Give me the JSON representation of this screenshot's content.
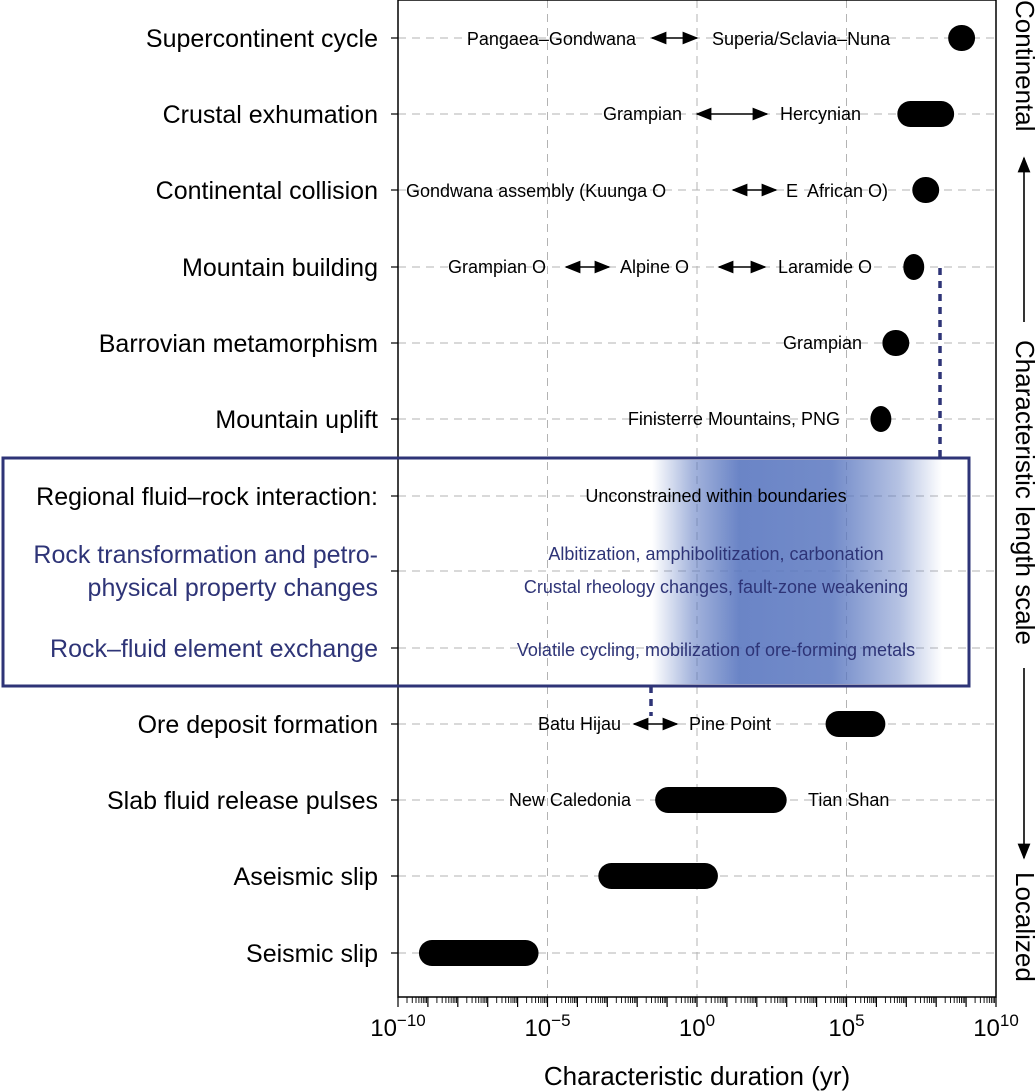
{
  "colors": {
    "ink": "#000000",
    "grid": "#b3b3b3",
    "accent": "#2e3477",
    "blue_fill": "#5a77c0"
  },
  "chart_data": {
    "type": "range-bar",
    "xscale": "log10",
    "xlim": [
      1e-10,
      10000000000.0
    ],
    "xlabel": "Characteristic duration (yr)",
    "ylabel": "Characteristic length scale",
    "ylabel_top": "Continental",
    "ylabel_bottom": "Localized",
    "grid": true,
    "x_ticks": [
      {
        "base": "10",
        "exp": "−10",
        "value": -10
      },
      {
        "base": "10",
        "exp": "−5",
        "value": -5
      },
      {
        "base": "10",
        "exp": "0",
        "value": 0
      },
      {
        "base": "10",
        "exp": "5",
        "value": 5
      },
      {
        "base": "10",
        "exp": "10",
        "value": 10
      }
    ],
    "rows": [
      {
        "label": "Supercontinent cycle",
        "range_log10": [
          8.4,
          9.3
        ]
      },
      {
        "label": "Crustal exhumation",
        "range_log10": [
          6.7,
          8.6
        ]
      },
      {
        "label": "Continental collision",
        "range_log10": [
          7.2,
          8.1
        ]
      },
      {
        "label": "Mountain building",
        "range_log10": [
          6.9,
          7.6
        ]
      },
      {
        "label": "Barrovian metamorphism",
        "range_log10": [
          6.2,
          7.1
        ]
      },
      {
        "label": "Mountain uplift",
        "range_log10": [
          5.8,
          6.5
        ]
      },
      {
        "label": "Regional fluid–rock interaction:",
        "range_log10": null
      },
      {
        "label": "Rock transformation and petro-",
        "label2": "physical property changes",
        "range_log10": null
      },
      {
        "label": "Rock–fluid element exchange",
        "range_log10": null
      },
      {
        "label": "Ore deposit formation",
        "range_log10": [
          4.3,
          6.3
        ]
      },
      {
        "label": "Slab fluid release pulses",
        "range_log10": [
          -1.4,
          3.0
        ]
      },
      {
        "label": "Aseismic slip",
        "range_log10": [
          -3.3,
          0.7
        ]
      },
      {
        "label": "Seismic slip",
        "range_log10": [
          -9.3,
          -5.3
        ]
      }
    ],
    "annotations": {
      "supercontinent": {
        "left": "Pangaea–Gondwana",
        "right": "Superia/Sclavia–Nuna"
      },
      "exhumation": {
        "left": "Grampian",
        "right": "Hercynian"
      },
      "collision": {
        "left": "Gondwana assembly (Kuunga O",
        "right": "E  African O)"
      },
      "mountain_building": {
        "a": "Grampian O",
        "b": "Alpine O",
        "c": "Laramide O"
      },
      "barrovian": "Grampian",
      "uplift": "Finisterre Mountains, PNG",
      "regional": "Unconstrained within boundaries",
      "transformation_1": "Albitization, amphibolitization, carbonation",
      "transformation_2": "Crustal rheology changes, fault-zone weakening",
      "exchange": "Volatile cycling, mobilization of ore-forming metals",
      "ore": {
        "left": "Batu Hijau",
        "right": "Pine Point"
      },
      "slab": {
        "left": "New Caledonia",
        "right": "Tian Shan"
      }
    },
    "fluid_rock_box_range_log10": [
      -1.5,
      8.2
    ]
  }
}
